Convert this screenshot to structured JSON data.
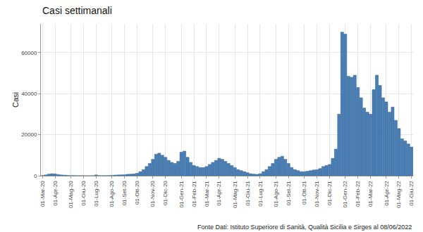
{
  "chart_data": {
    "type": "bar",
    "title": "Casi settimanali",
    "y_label": "Casi",
    "annotations": [
      "Fonte Dati: Istituto Superiore di Sanità, Qualità Sicilia e Sirges al 08/06/2022"
    ],
    "categories": [
      "01-Mar-20",
      null,
      null,
      null,
      "01-Apr-20",
      null,
      null,
      null,
      null,
      "01-Mag-20",
      null,
      null,
      null,
      "01-Giu-20",
      null,
      null,
      null,
      "01-Lug-20",
      null,
      null,
      null,
      null,
      "01-Ago-20",
      null,
      null,
      null,
      "01-Set-20",
      null,
      null,
      null,
      "01-Ott-20",
      null,
      null,
      null,
      null,
      "01-Nov-20",
      null,
      null,
      null,
      "01-Dic-20",
      null,
      null,
      null,
      null,
      "01-Gen-21",
      null,
      null,
      null,
      "01-Feb-21",
      null,
      null,
      null,
      "01-Mar-21",
      null,
      null,
      null,
      "01-Apr-21",
      null,
      null,
      null,
      null,
      "01-Mag-21",
      null,
      null,
      null,
      "01-Giu-21",
      null,
      null,
      null,
      "01-Lug-21",
      null,
      null,
      null,
      null,
      "01-Ago-21",
      null,
      null,
      null,
      "01-Set-21",
      null,
      null,
      null,
      null,
      "01-Ott-21",
      null,
      null,
      null,
      "01-Nov-21",
      null,
      null,
      null,
      "01-Dic-21",
      null,
      null,
      null,
      null,
      "01-Gen-22",
      null,
      null,
      null,
      "01-Feb-22",
      null,
      null,
      null,
      "01-Mar-22",
      null,
      null,
      null,
      null,
      "01-Apr-22",
      null,
      null,
      null,
      "01-Mag-22",
      null,
      null,
      null,
      "01-Giu-22"
    ],
    "values": [
      100,
      400,
      800,
      1000,
      900,
      600,
      400,
      300,
      200,
      100,
      80,
      50,
      40,
      30,
      20,
      20,
      30,
      400,
      60,
      50,
      80,
      100,
      200,
      300,
      400,
      450,
      500,
      700,
      800,
      900,
      1200,
      2000,
      3000,
      4500,
      6000,
      8000,
      10500,
      11000,
      10000,
      9000,
      7500,
      6500,
      6000,
      7000,
      11500,
      12000,
      9000,
      6500,
      5000,
      4500,
      4000,
      4000,
      4500,
      5500,
      6500,
      7500,
      8500,
      8000,
      7000,
      6000,
      5000,
      4000,
      3000,
      2500,
      2000,
      1500,
      1000,
      800,
      700,
      1000,
      2000,
      3000,
      4500,
      6000,
      8000,
      9000,
      9500,
      8000,
      6000,
      4000,
      3000,
      2500,
      2000,
      2000,
      2200,
      2500,
      2800,
      3000,
      3500,
      4500,
      5000,
      5500,
      8500,
      13000,
      30000,
      70000,
      69000,
      48500,
      48000,
      49000,
      43000,
      38000,
      33000,
      31000,
      30000,
      42000,
      49000,
      44000,
      38000,
      36000,
      31000,
      33500,
      27000,
      23000,
      18000,
      17000,
      15500,
      14000
    ],
    "color": "#4a7fb5",
    "ylim": [
      0,
      74000
    ],
    "yticks": [
      0,
      20000,
      40000,
      60000
    ],
    "grid": true
  }
}
